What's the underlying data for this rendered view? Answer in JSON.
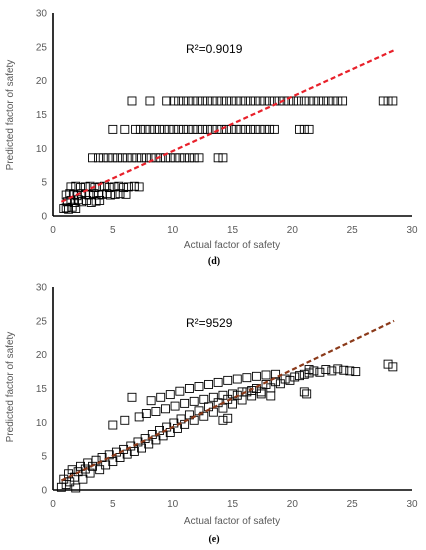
{
  "chart_data": [
    {
      "type": "scatter",
      "panel_label": "(d)",
      "xlabel": "Actual factor of safety",
      "ylabel": "Predicted factor of safety",
      "xlim": [
        0,
        30
      ],
      "ylim": [
        0,
        30
      ],
      "xticks": [
        0,
        5,
        10,
        15,
        20,
        25,
        30
      ],
      "yticks": [
        0,
        5,
        10,
        15,
        20,
        25,
        30
      ],
      "grid": false,
      "annotation": "R²=0.9019",
      "marker": "hollow-square",
      "marker_color": "#000000",
      "trendline": {
        "style": "dashed",
        "color": "#e8202a",
        "x": [
          0.7,
          28.5
        ],
        "y": [
          2.1,
          24.5
        ]
      },
      "series": [
        {
          "points": [
            [
              0.9,
              1.1
            ],
            [
              1.1,
              1.2
            ],
            [
              1.3,
              1.0
            ],
            [
              1.6,
              1.3
            ],
            [
              1.9,
              1.1
            ],
            [
              1.2,
              2.1
            ],
            [
              1.5,
              2.3
            ],
            [
              1.8,
              2.0
            ],
            [
              2.1,
              2.4
            ],
            [
              2.4,
              2.1
            ],
            [
              2.8,
              2.3
            ],
            [
              3.2,
              2.0
            ],
            [
              3.6,
              2.2
            ],
            [
              3.9,
              2.3
            ],
            [
              1.1,
              3.1
            ],
            [
              1.4,
              3.3
            ],
            [
              1.7,
              3.2
            ],
            [
              2.0,
              3.0
            ],
            [
              2.4,
              3.3
            ],
            [
              2.7,
              3.2
            ],
            [
              3.0,
              3.1
            ],
            [
              3.4,
              3.3
            ],
            [
              3.8,
              3.1
            ],
            [
              4.1,
              3.2
            ],
            [
              4.5,
              3.3
            ],
            [
              4.8,
              3.1
            ],
            [
              5.2,
              3.2
            ],
            [
              5.6,
              3.3
            ],
            [
              6.1,
              3.2
            ],
            [
              1.5,
              4.3
            ],
            [
              1.9,
              4.4
            ],
            [
              2.3,
              4.2
            ],
            [
              2.7,
              4.3
            ],
            [
              3.1,
              4.4
            ],
            [
              3.5,
              4.2
            ],
            [
              3.9,
              4.3
            ],
            [
              4.3,
              4.4
            ],
            [
              4.7,
              4.2
            ],
            [
              5.1,
              4.3
            ],
            [
              5.5,
              4.4
            ],
            [
              5.9,
              4.2
            ],
            [
              6.3,
              4.3
            ],
            [
              6.8,
              4.4
            ],
            [
              7.2,
              4.3
            ],
            [
              3.3,
              8.6
            ],
            [
              3.8,
              8.6
            ],
            [
              4.2,
              8.6
            ],
            [
              4.6,
              8.6
            ],
            [
              5.0,
              8.6
            ],
            [
              5.4,
              8.6
            ],
            [
              5.8,
              8.6
            ],
            [
              6.2,
              8.6
            ],
            [
              6.6,
              8.6
            ],
            [
              7.0,
              8.6
            ],
            [
              7.4,
              8.6
            ],
            [
              7.8,
              8.6
            ],
            [
              8.2,
              8.6
            ],
            [
              8.6,
              8.6
            ],
            [
              9.0,
              8.6
            ],
            [
              9.4,
              8.6
            ],
            [
              9.8,
              8.6
            ],
            [
              10.2,
              8.6
            ],
            [
              10.6,
              8.6
            ],
            [
              11.0,
              8.6
            ],
            [
              11.4,
              8.6
            ],
            [
              11.8,
              8.6
            ],
            [
              12.2,
              8.6
            ],
            [
              13.8,
              8.6
            ],
            [
              14.2,
              8.6
            ],
            [
              5.0,
              12.8
            ],
            [
              6.0,
              12.8
            ],
            [
              6.9,
              12.8
            ],
            [
              7.3,
              12.8
            ],
            [
              7.7,
              12.8
            ],
            [
              8.1,
              12.8
            ],
            [
              8.5,
              12.8
            ],
            [
              8.9,
              12.8
            ],
            [
              9.3,
              12.8
            ],
            [
              9.7,
              12.8
            ],
            [
              10.1,
              12.8
            ],
            [
              10.5,
              12.8
            ],
            [
              10.9,
              12.8
            ],
            [
              11.3,
              12.8
            ],
            [
              11.7,
              12.8
            ],
            [
              12.1,
              12.8
            ],
            [
              12.5,
              12.8
            ],
            [
              12.9,
              12.8
            ],
            [
              13.3,
              12.8
            ],
            [
              13.7,
              12.8
            ],
            [
              14.1,
              12.8
            ],
            [
              14.5,
              12.8
            ],
            [
              14.9,
              12.8
            ],
            [
              15.3,
              12.8
            ],
            [
              15.7,
              12.8
            ],
            [
              16.1,
              12.8
            ],
            [
              16.5,
              12.8
            ],
            [
              16.9,
              12.8
            ],
            [
              17.3,
              12.8
            ],
            [
              17.7,
              12.8
            ],
            [
              18.1,
              12.8
            ],
            [
              18.5,
              12.8
            ],
            [
              20.6,
              12.8
            ],
            [
              21.0,
              12.8
            ],
            [
              21.4,
              12.8
            ],
            [
              6.6,
              17.0
            ],
            [
              8.1,
              17.0
            ],
            [
              9.5,
              17.0
            ],
            [
              10.1,
              17.0
            ],
            [
              10.5,
              17.0
            ],
            [
              10.9,
              17.0
            ],
            [
              11.3,
              17.0
            ],
            [
              11.7,
              17.0
            ],
            [
              12.1,
              17.0
            ],
            [
              12.5,
              17.0
            ],
            [
              12.9,
              17.0
            ],
            [
              13.3,
              17.0
            ],
            [
              13.7,
              17.0
            ],
            [
              14.1,
              17.0
            ],
            [
              14.5,
              17.0
            ],
            [
              14.9,
              17.0
            ],
            [
              15.3,
              17.0
            ],
            [
              15.7,
              17.0
            ],
            [
              16.1,
              17.0
            ],
            [
              16.5,
              17.0
            ],
            [
              16.9,
              17.0
            ],
            [
              17.3,
              17.0
            ],
            [
              17.7,
              17.0
            ],
            [
              18.1,
              17.0
            ],
            [
              18.5,
              17.0
            ],
            [
              18.9,
              17.0
            ],
            [
              19.3,
              17.0
            ],
            [
              19.7,
              17.0
            ],
            [
              20.1,
              17.0
            ],
            [
              20.5,
              17.0
            ],
            [
              21.0,
              17.0
            ],
            [
              21.4,
              17.0
            ],
            [
              21.8,
              17.0
            ],
            [
              22.2,
              17.0
            ],
            [
              22.6,
              17.0
            ],
            [
              23.0,
              17.0
            ],
            [
              23.4,
              17.0
            ],
            [
              23.8,
              17.0
            ],
            [
              24.2,
              17.0
            ],
            [
              27.6,
              17.0
            ],
            [
              28.0,
              17.0
            ],
            [
              28.4,
              17.0
            ]
          ]
        }
      ]
    },
    {
      "type": "scatter",
      "panel_label": "(e)",
      "xlabel": "Actual factor of safety",
      "ylabel": "Predicted factor of safety",
      "xlim": [
        0,
        30
      ],
      "ylim": [
        0,
        30
      ],
      "xticks": [
        0,
        5,
        10,
        15,
        20,
        25,
        30
      ],
      "yticks": [
        0,
        5,
        10,
        15,
        20,
        25,
        30
      ],
      "grid": false,
      "annotation": "R²=9529",
      "marker": "hollow-square",
      "marker_color": "#000000",
      "trendline": {
        "style": "dashed",
        "color": "#8b3a1a",
        "x": [
          0.7,
          28.5
        ],
        "y": [
          1.4,
          25.0
        ]
      },
      "series": [
        {
          "points": [
            [
              0.7,
              0.4
            ],
            [
              0.9,
              1.6
            ],
            [
              1.1,
              0.8
            ],
            [
              1.3,
              2.4
            ],
            [
              1.4,
              1.2
            ],
            [
              1.6,
              3.0
            ],
            [
              1.8,
              1.9
            ],
            [
              1.9,
              0.3
            ],
            [
              2.1,
              2.7
            ],
            [
              2.3,
              3.5
            ],
            [
              2.5,
              1.6
            ],
            [
              2.7,
              3.1
            ],
            [
              2.9,
              4.0
            ],
            [
              3.1,
              2.5
            ],
            [
              3.3,
              3.5
            ],
            [
              3.6,
              4.4
            ],
            [
              3.9,
              3.0
            ],
            [
              4.1,
              4.8
            ],
            [
              4.4,
              3.7
            ],
            [
              4.7,
              5.2
            ],
            [
              5.0,
              4.2
            ],
            [
              5.3,
              5.6
            ],
            [
              5.6,
              4.8
            ],
            [
              5.9,
              6.0
            ],
            [
              6.2,
              5.3
            ],
            [
              6.5,
              6.5
            ],
            [
              6.8,
              5.7
            ],
            [
              7.1,
              7.1
            ],
            [
              7.4,
              6.2
            ],
            [
              7.7,
              7.6
            ],
            [
              8.0,
              6.8
            ],
            [
              8.3,
              8.2
            ],
            [
              8.6,
              7.4
            ],
            [
              8.9,
              8.8
            ],
            [
              9.2,
              8.0
            ],
            [
              9.5,
              9.3
            ],
            [
              9.8,
              8.5
            ],
            [
              10.1,
              9.9
            ],
            [
              10.4,
              9.1
            ],
            [
              10.7,
              10.5
            ],
            [
              11.0,
              9.7
            ],
            [
              11.4,
              11.1
            ],
            [
              11.8,
              10.3
            ],
            [
              12.2,
              11.7
            ],
            [
              12.6,
              10.9
            ],
            [
              13.0,
              12.3
            ],
            [
              13.4,
              11.5
            ],
            [
              13.8,
              12.9
            ],
            [
              14.2,
              12.1
            ],
            [
              14.6,
              13.4
            ],
            [
              15.0,
              12.7
            ],
            [
              15.4,
              14.0
            ],
            [
              15.8,
              13.3
            ],
            [
              16.2,
              14.5
            ],
            [
              16.6,
              13.9
            ],
            [
              17.0,
              15.0
            ],
            [
              17.4,
              14.5
            ],
            [
              17.8,
              15.6
            ],
            [
              18.2,
              15.1
            ],
            [
              18.6,
              16.0
            ],
            [
              19.0,
              15.7
            ],
            [
              19.4,
              16.4
            ],
            [
              19.8,
              16.2
            ],
            [
              20.2,
              16.7
            ],
            [
              20.6,
              16.9
            ],
            [
              21.0,
              17.1
            ],
            [
              21.4,
              17.3
            ],
            [
              21.8,
              17.6
            ],
            [
              22.3,
              17.4
            ],
            [
              22.8,
              17.8
            ],
            [
              23.3,
              17.6
            ],
            [
              23.8,
              17.9
            ],
            [
              24.3,
              17.7
            ],
            [
              24.8,
              17.6
            ],
            [
              25.3,
              17.5
            ],
            [
              5.0,
              9.6
            ],
            [
              6.0,
              10.3
            ],
            [
              6.6,
              13.7
            ],
            [
              7.2,
              10.8
            ],
            [
              7.8,
              11.3
            ],
            [
              8.2,
              13.2
            ],
            [
              8.6,
              11.6
            ],
            [
              9.0,
              13.7
            ],
            [
              9.4,
              12.0
            ],
            [
              9.8,
              14.1
            ],
            [
              10.2,
              12.4
            ],
            [
              10.6,
              14.6
            ],
            [
              11.0,
              12.8
            ],
            [
              11.4,
              15.0
            ],
            [
              11.8,
              13.1
            ],
            [
              12.2,
              15.3
            ],
            [
              12.6,
              13.4
            ],
            [
              13.0,
              15.6
            ],
            [
              13.4,
              13.7
            ],
            [
              13.8,
              15.9
            ],
            [
              14.2,
              14.0
            ],
            [
              14.6,
              16.2
            ],
            [
              15.0,
              14.2
            ],
            [
              15.4,
              16.4
            ],
            [
              15.8,
              14.5
            ],
            [
              16.2,
              16.6
            ],
            [
              16.6,
              14.7
            ],
            [
              17.0,
              16.8
            ],
            [
              17.4,
              14.2
            ],
            [
              17.8,
              17.0
            ],
            [
              18.2,
              13.9
            ],
            [
              18.6,
              17.1
            ],
            [
              14.2,
              10.3
            ],
            [
              14.6,
              10.6
            ],
            [
              21.0,
              14.5
            ],
            [
              21.2,
              14.2
            ],
            [
              21.4,
              17.8
            ],
            [
              28.0,
              18.6
            ],
            [
              28.4,
              18.2
            ]
          ]
        }
      ]
    }
  ]
}
